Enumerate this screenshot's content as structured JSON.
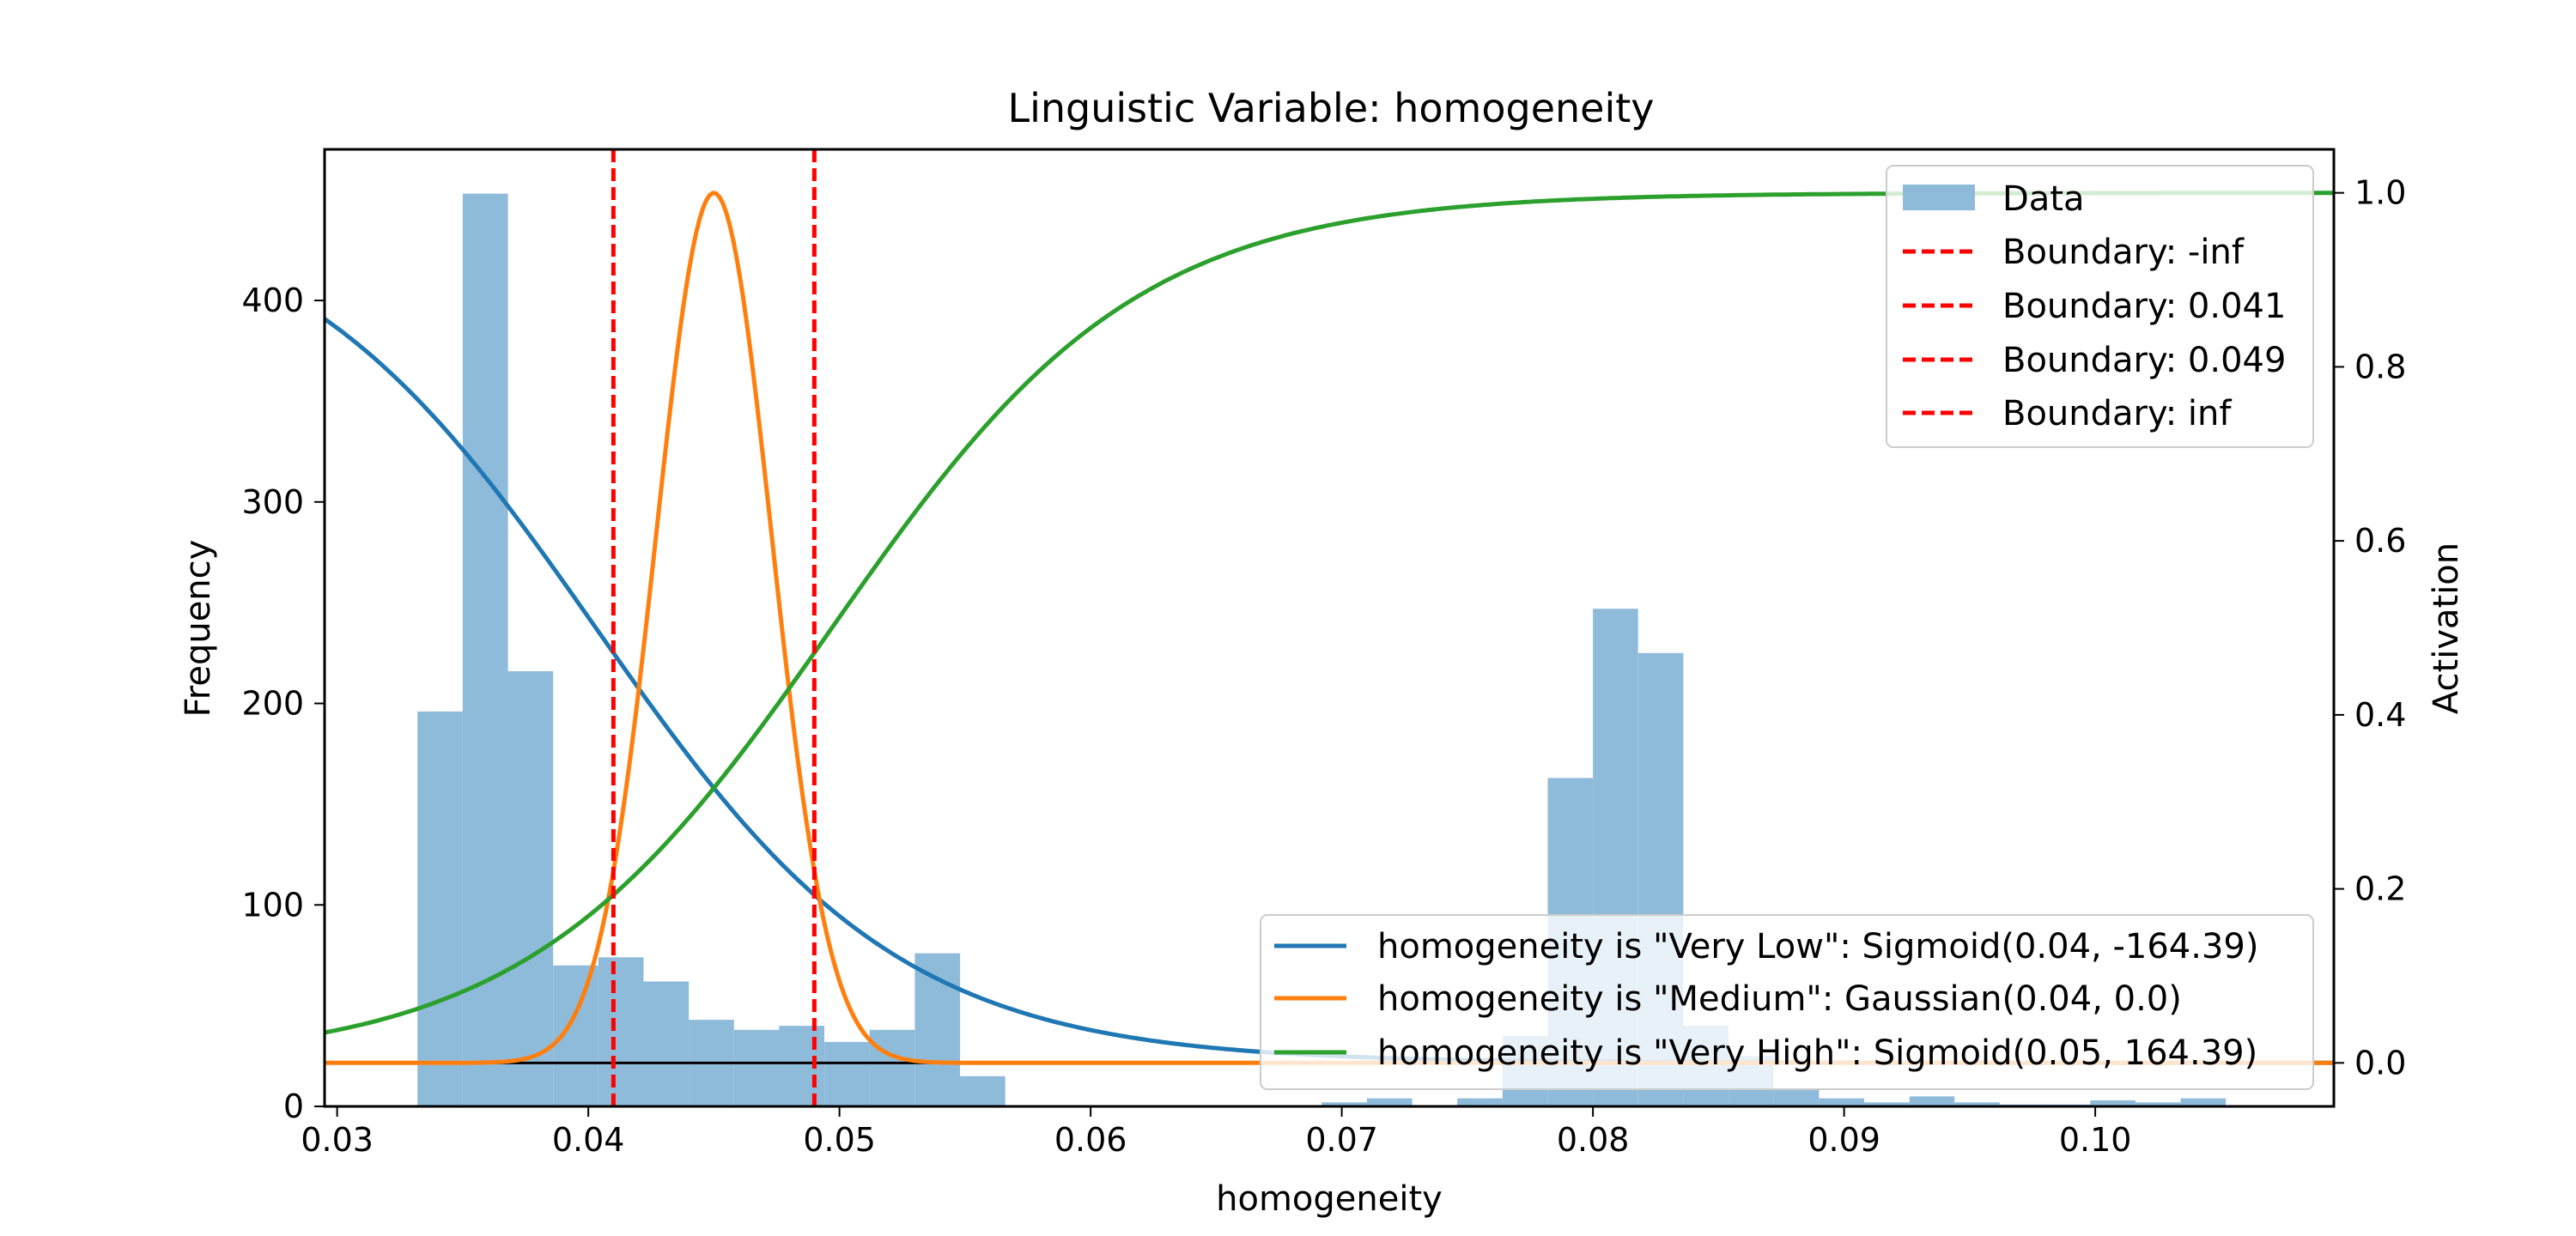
{
  "chart_data": {
    "type": "bar",
    "title": "Linguistic Variable: homogeneity",
    "xlabel": "homogeneity",
    "ylabel": "Frequency",
    "y2label": "Activation",
    "xlim": [
      0.0295,
      0.1095
    ],
    "ylim": [
      0,
      475
    ],
    "y2lim": [
      -0.05,
      1.05
    ],
    "xticks": [
      "0.03",
      "0.04",
      "0.05",
      "0.06",
      "0.07",
      "0.08",
      "0.09",
      "0.10"
    ],
    "yticks": [
      "0",
      "100",
      "200",
      "300",
      "400"
    ],
    "y2ticks": [
      "0.0",
      "0.2",
      "0.4",
      "0.6",
      "0.8",
      "1.0"
    ],
    "grid": false,
    "histogram": {
      "name": "Data",
      "color": "#8fbbdb",
      "bin_width": 0.0018,
      "bins": [
        {
          "x0": 0.0332,
          "count": 196
        },
        {
          "x0": 0.035,
          "count": 453
        },
        {
          "x0": 0.0368,
          "count": 216
        },
        {
          "x0": 0.0386,
          "count": 70
        },
        {
          "x0": 0.0404,
          "count": 74
        },
        {
          "x0": 0.0422,
          "count": 62
        },
        {
          "x0": 0.044,
          "count": 43
        },
        {
          "x0": 0.0458,
          "count": 38
        },
        {
          "x0": 0.0476,
          "count": 40
        },
        {
          "x0": 0.0494,
          "count": 32
        },
        {
          "x0": 0.0512,
          "count": 38
        },
        {
          "x0": 0.053,
          "count": 76
        },
        {
          "x0": 0.0548,
          "count": 15
        },
        {
          "x0": 0.0566,
          "count": 0
        },
        {
          "x0": 0.0584,
          "count": 0
        },
        {
          "x0": 0.0602,
          "count": 0
        },
        {
          "x0": 0.062,
          "count": 0
        },
        {
          "x0": 0.0638,
          "count": 0
        },
        {
          "x0": 0.0656,
          "count": 0
        },
        {
          "x0": 0.0674,
          "count": 0
        },
        {
          "x0": 0.0692,
          "count": 2
        },
        {
          "x0": 0.071,
          "count": 4
        },
        {
          "x0": 0.0728,
          "count": 0
        },
        {
          "x0": 0.0746,
          "count": 4
        },
        {
          "x0": 0.0764,
          "count": 35
        },
        {
          "x0": 0.0782,
          "count": 163
        },
        {
          "x0": 0.08,
          "count": 247
        },
        {
          "x0": 0.0818,
          "count": 225
        },
        {
          "x0": 0.0836,
          "count": 40
        },
        {
          "x0": 0.0854,
          "count": 25
        },
        {
          "x0": 0.0872,
          "count": 9
        },
        {
          "x0": 0.089,
          "count": 4
        },
        {
          "x0": 0.0908,
          "count": 2
        },
        {
          "x0": 0.0926,
          "count": 5
        },
        {
          "x0": 0.0944,
          "count": 2
        },
        {
          "x0": 0.0962,
          "count": 1
        },
        {
          "x0": 0.098,
          "count": 1
        },
        {
          "x0": 0.0998,
          "count": 3
        },
        {
          "x0": 0.1016,
          "count": 2
        },
        {
          "x0": 0.1034,
          "count": 4
        }
      ]
    },
    "boundaries": [
      {
        "label": "Boundary: -inf",
        "value": null
      },
      {
        "label": "Boundary: 0.041",
        "value": 0.041
      },
      {
        "label": "Boundary: 0.049",
        "value": 0.049
      },
      {
        "label": "Boundary: inf",
        "value": null
      }
    ],
    "boundary_color": "#ff0000",
    "series": [
      {
        "name": "homogeneity is \"Very Low\": Sigmoid(0.04, -164.39)",
        "kind": "sigmoid",
        "center": 0.0403,
        "slope": -164.39,
        "color": "#1f77b4"
      },
      {
        "name": "homogeneity is \"Medium\": Gaussian(0.04, 0.0)",
        "kind": "gaussian",
        "center": 0.045,
        "sigma": 0.0023,
        "color": "#ff7f0e"
      },
      {
        "name": "homogeneity is \"Very High\": Sigmoid(0.05, 164.39)",
        "kind": "sigmoid",
        "center": 0.0497,
        "slope": 164.39,
        "color": "#2ca02c"
      }
    ],
    "legends": {
      "upper": "top-right",
      "lower": "bottom-right"
    }
  }
}
